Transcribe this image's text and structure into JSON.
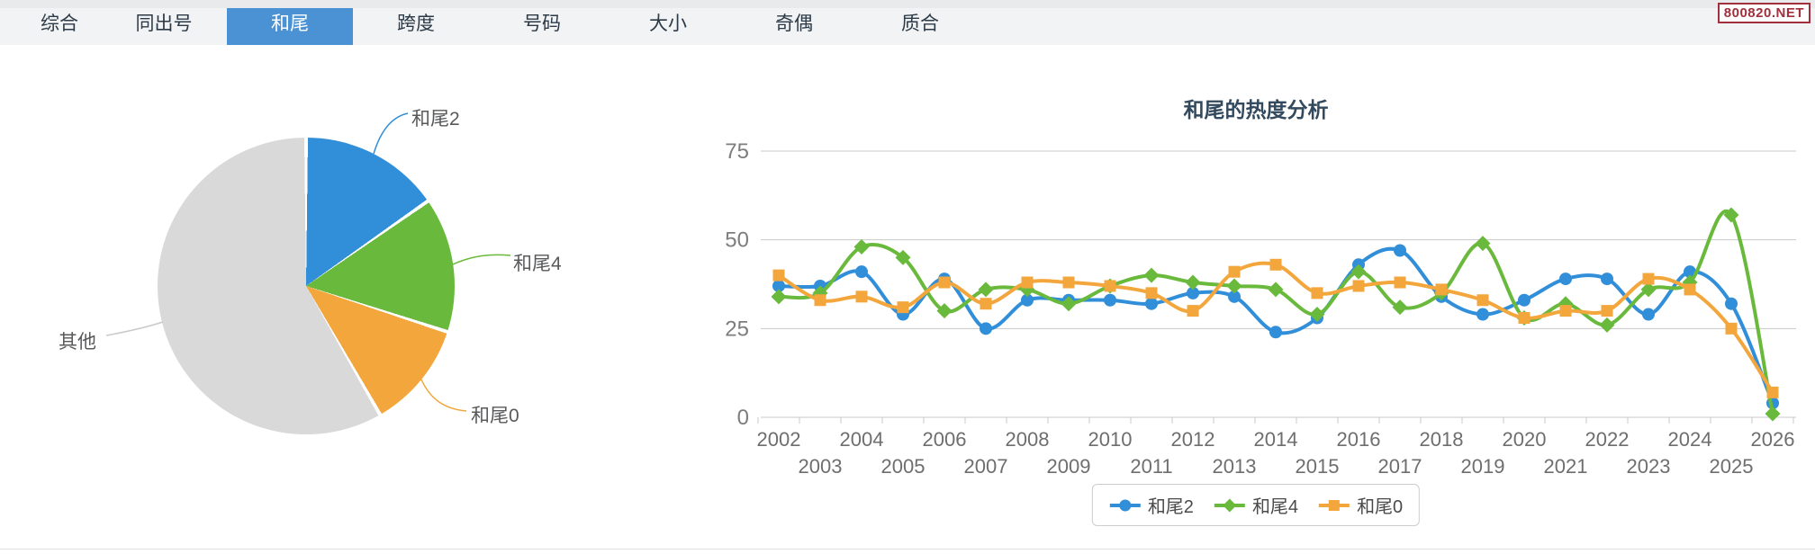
{
  "tabs": {
    "items": [
      {
        "label": "综合",
        "active": false
      },
      {
        "label": "同出号",
        "active": false
      },
      {
        "label": "和尾",
        "active": true
      },
      {
        "label": "跨度",
        "active": false
      },
      {
        "label": "号码",
        "active": false
      },
      {
        "label": "大小",
        "active": false
      },
      {
        "label": "奇偶",
        "active": false
      },
      {
        "label": "质合",
        "active": false
      }
    ]
  },
  "watermark": "800820.NET",
  "colors": {
    "accent_tab": "#4b92d4",
    "series_blue": "#318ed9",
    "series_green": "#69ba3c",
    "series_orange": "#f3a63c",
    "pie_other_gray": "#d9d9da",
    "grid_line": "#c8c8c8",
    "axis_label": "#6e6e6e",
    "y_label": "#7d7d7d"
  },
  "chart_data": [
    {
      "type": "pie",
      "slices": [
        {
          "label": "和尾2",
          "percent": 15.3,
          "color": "#318ed9"
        },
        {
          "label": "和尾4",
          "percent": 14.7,
          "color": "#69ba3c"
        },
        {
          "label": "和尾0",
          "percent": 11.7,
          "color": "#f3a63c"
        },
        {
          "label": "其他",
          "percent": 58.3,
          "color": "#d9d9da"
        }
      ],
      "start_angle_deg": 0,
      "legend_position": "none"
    },
    {
      "type": "line",
      "title": "和尾的热度分析",
      "categories": [
        "2002",
        "2003",
        "2004",
        "2005",
        "2006",
        "2007",
        "2008",
        "2009",
        "2010",
        "2011",
        "2012",
        "2013",
        "2014",
        "2015",
        "2016",
        "2017",
        "2018",
        "2019",
        "2020",
        "2021",
        "2022",
        "2023",
        "2024",
        "2025",
        "2026"
      ],
      "series": [
        {
          "name": "和尾2",
          "color": "#318ed9",
          "marker": "circle",
          "values": [
            37,
            37,
            41,
            29,
            39,
            25,
            33,
            33,
            33,
            32,
            35,
            34,
            24,
            28,
            43,
            47,
            34,
            29,
            33,
            39,
            39,
            29,
            41,
            32,
            4
          ]
        },
        {
          "name": "和尾4",
          "color": "#69ba3c",
          "marker": "diamond",
          "values": [
            34,
            35,
            48,
            45,
            30,
            36,
            36,
            32,
            37,
            40,
            38,
            37,
            36,
            29,
            41,
            31,
            35,
            49,
            28,
            32,
            26,
            36,
            38,
            57,
            1
          ]
        },
        {
          "name": "和尾0",
          "color": "#f3a63c",
          "marker": "square",
          "values": [
            40,
            33,
            34,
            31,
            38,
            32,
            38,
            38,
            37,
            35,
            30,
            41,
            43,
            35,
            37,
            38,
            36,
            33,
            28,
            30,
            30,
            39,
            36,
            25,
            7
          ]
        }
      ],
      "xlabel": "",
      "ylabel": "",
      "ylim": [
        0,
        75
      ],
      "yticks": [
        0,
        25,
        50,
        75
      ],
      "grid": true,
      "smooth": true,
      "legend_position": "bottom"
    }
  ]
}
